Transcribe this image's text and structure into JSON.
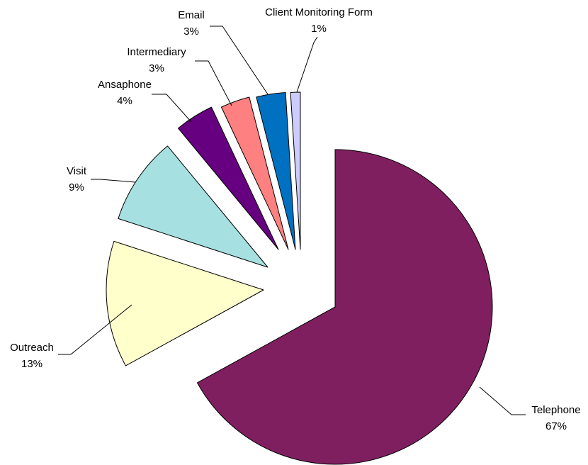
{
  "chart_data": {
    "type": "pie",
    "exploded": true,
    "slices": [
      {
        "label": "Telephone",
        "value": 67,
        "display": "67%",
        "color": "#7F1F5F"
      },
      {
        "label": "Outreach",
        "value": 13,
        "display": "13%",
        "color": "#FFFFCC"
      },
      {
        "label": "Visit",
        "value": 9,
        "display": "9%",
        "color": "#A6E0E0"
      },
      {
        "label": "Ansaphone",
        "value": 4,
        "display": "4%",
        "color": "#660080"
      },
      {
        "label": "Intermediary",
        "value": 3,
        "display": "3%",
        "color": "#FF8080"
      },
      {
        "label": "Email",
        "value": 3,
        "display": "3%",
        "color": "#0070C0"
      },
      {
        "label": "Client Monitoring Form",
        "value": 1,
        "display": "1%",
        "color": "#CCCCFF"
      }
    ],
    "legend": "none",
    "data_labels": "outside-with-leaders"
  }
}
